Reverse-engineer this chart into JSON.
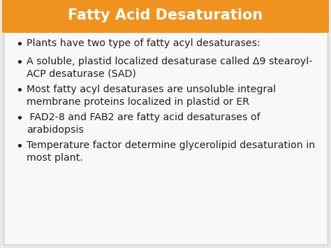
{
  "title": "Fatty Acid Desaturation",
  "title_color": "#ffffff",
  "title_bg_color": "#F0921E",
  "title_bg_gradient_top": "#F5A23C",
  "title_fontsize": 15,
  "slide_bg_color": "#e8e8e8",
  "content_bg_color": "#f8f8f8",
  "bullet_color": "#222222",
  "bullet_fontsize": 10.2,
  "bullets": [
    "Plants have two type of fatty acyl desaturases:",
    "A soluble, plastid localized desaturase called Δ9 stearoyl-\nACP desaturase (SAD)",
    "Most fatty acyl desaturases are unsoluble integral\nmembrane proteins localized in plastid or ER",
    " FAD2-8 and FAB2 are fatty acid desaturases of\narabidopsis",
    "Temperature factor determine glycerolipid desaturation in\nmost plant."
  ],
  "fig_width": 4.74,
  "fig_height": 3.55,
  "dpi": 100
}
